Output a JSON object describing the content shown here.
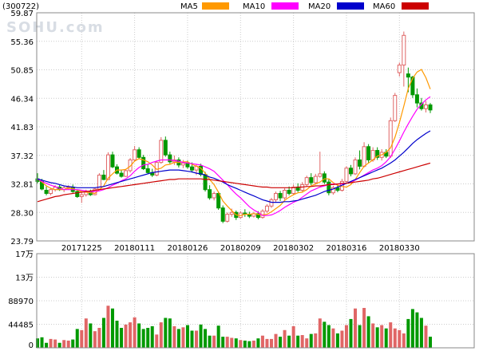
{
  "header": {
    "code": "(300722)",
    "watermark": "SOHU.com",
    "legend": [
      {
        "label": "MA5",
        "color": "#ff9900"
      },
      {
        "label": "MA10",
        "color": "#ff00ff"
      },
      {
        "label": "MA20",
        "color": "#0000cc"
      },
      {
        "label": "MA60",
        "color": "#cc0000"
      }
    ]
  },
  "colors": {
    "up": "#e06666",
    "down": "#009900",
    "grid": "#cccccc",
    "frame": "#888888"
  },
  "chart_data": {
    "type": "candlestick",
    "price_axis": {
      "ticks": [
        "59.87",
        "55.36",
        "50.85",
        "46.34",
        "41.83",
        "37.32",
        "32.81",
        "28.30",
        "23.79"
      ],
      "ylim": [
        23.79,
        59.87
      ]
    },
    "volume_axis": {
      "ticks": [
        "17万",
        "13万",
        "88970",
        "44485",
        "0"
      ],
      "ylim": [
        0,
        170000
      ]
    },
    "date_labels": [
      "20171225",
      "20180111",
      "20180126",
      "20180209",
      "20180302",
      "20180316",
      "20180330"
    ],
    "date_label_index": [
      10,
      22,
      34,
      46,
      58,
      70,
      82
    ],
    "candles": [
      {
        "o": 33.6,
        "h": 34.5,
        "l": 32.9,
        "c": 33.2
      },
      {
        "o": 33.2,
        "h": 33.6,
        "l": 31.8,
        "c": 32.0
      },
      {
        "o": 31.8,
        "h": 32.4,
        "l": 31.0,
        "c": 31.3
      },
      {
        "o": 31.3,
        "h": 32.2,
        "l": 31.0,
        "c": 31.9
      },
      {
        "o": 31.9,
        "h": 32.6,
        "l": 31.6,
        "c": 32.3
      },
      {
        "o": 32.3,
        "h": 32.7,
        "l": 31.7,
        "c": 31.9
      },
      {
        "o": 31.9,
        "h": 32.5,
        "l": 31.5,
        "c": 32.2
      },
      {
        "o": 32.2,
        "h": 32.6,
        "l": 31.9,
        "c": 32.3
      },
      {
        "o": 32.3,
        "h": 32.7,
        "l": 31.4,
        "c": 31.6
      },
      {
        "o": 31.6,
        "h": 31.8,
        "l": 30.6,
        "c": 30.8
      },
      {
        "o": 30.8,
        "h": 31.4,
        "l": 29.8,
        "c": 31.1
      },
      {
        "o": 31.1,
        "h": 31.9,
        "l": 30.8,
        "c": 31.5
      },
      {
        "o": 31.5,
        "h": 31.9,
        "l": 30.9,
        "c": 31.1
      },
      {
        "o": 31.1,
        "h": 32.2,
        "l": 31.0,
        "c": 32.0
      },
      {
        "o": 32.0,
        "h": 34.5,
        "l": 31.9,
        "c": 34.2
      },
      {
        "o": 34.2,
        "h": 35.0,
        "l": 33.4,
        "c": 33.5
      },
      {
        "o": 33.5,
        "h": 37.8,
        "l": 33.4,
        "c": 37.4
      },
      {
        "o": 37.4,
        "h": 37.9,
        "l": 35.3,
        "c": 35.5
      },
      {
        "o": 35.5,
        "h": 35.9,
        "l": 34.3,
        "c": 34.5
      },
      {
        "o": 34.5,
        "h": 35.0,
        "l": 33.8,
        "c": 34.0
      },
      {
        "o": 34.0,
        "h": 35.1,
        "l": 33.9,
        "c": 34.9
      },
      {
        "o": 34.9,
        "h": 36.9,
        "l": 34.6,
        "c": 36.6
      },
      {
        "o": 36.6,
        "h": 38.8,
        "l": 36.4,
        "c": 38.2
      },
      {
        "o": 38.2,
        "h": 38.6,
        "l": 36.8,
        "c": 37.0
      },
      {
        "o": 37.0,
        "h": 37.4,
        "l": 35.0,
        "c": 35.2
      },
      {
        "o": 35.2,
        "h": 35.9,
        "l": 34.4,
        "c": 34.6
      },
      {
        "o": 34.6,
        "h": 35.2,
        "l": 33.9,
        "c": 34.2
      },
      {
        "o": 34.2,
        "h": 36.5,
        "l": 34.0,
        "c": 36.2
      },
      {
        "o": 36.2,
        "h": 40.2,
        "l": 36.0,
        "c": 39.7
      },
      {
        "o": 39.7,
        "h": 40.3,
        "l": 37.1,
        "c": 37.4
      },
      {
        "o": 37.4,
        "h": 37.9,
        "l": 36.0,
        "c": 36.3
      },
      {
        "o": 36.3,
        "h": 37.3,
        "l": 35.8,
        "c": 36.6
      },
      {
        "o": 36.6,
        "h": 37.0,
        "l": 35.4,
        "c": 35.8
      },
      {
        "o": 35.8,
        "h": 36.6,
        "l": 35.3,
        "c": 36.1
      },
      {
        "o": 36.1,
        "h": 36.5,
        "l": 35.2,
        "c": 35.5
      },
      {
        "o": 35.5,
        "h": 36.2,
        "l": 34.6,
        "c": 35.0
      },
      {
        "o": 35.0,
        "h": 35.9,
        "l": 34.2,
        "c": 35.6
      },
      {
        "o": 35.6,
        "h": 36.0,
        "l": 34.0,
        "c": 34.3
      },
      {
        "o": 34.3,
        "h": 34.7,
        "l": 31.6,
        "c": 31.9
      },
      {
        "o": 31.9,
        "h": 32.6,
        "l": 30.3,
        "c": 30.6
      },
      {
        "o": 30.6,
        "h": 31.6,
        "l": 30.2,
        "c": 31.3
      },
      {
        "o": 31.3,
        "h": 31.6,
        "l": 28.7,
        "c": 29.0
      },
      {
        "o": 29.0,
        "h": 29.4,
        "l": 26.6,
        "c": 26.9
      },
      {
        "o": 26.9,
        "h": 28.3,
        "l": 26.7,
        "c": 28.0
      },
      {
        "o": 28.0,
        "h": 28.9,
        "l": 27.6,
        "c": 28.3
      },
      {
        "o": 28.3,
        "h": 28.6,
        "l": 27.1,
        "c": 27.5
      },
      {
        "o": 27.5,
        "h": 28.5,
        "l": 27.3,
        "c": 28.2
      },
      {
        "o": 28.2,
        "h": 28.8,
        "l": 27.6,
        "c": 28.0
      },
      {
        "o": 28.0,
        "h": 28.4,
        "l": 27.4,
        "c": 27.7
      },
      {
        "o": 27.7,
        "h": 28.4,
        "l": 27.5,
        "c": 28.1
      },
      {
        "o": 28.1,
        "h": 28.5,
        "l": 27.2,
        "c": 27.5
      },
      {
        "o": 27.5,
        "h": 28.8,
        "l": 27.3,
        "c": 28.5
      },
      {
        "o": 28.5,
        "h": 29.6,
        "l": 28.2,
        "c": 29.3
      },
      {
        "o": 29.3,
        "h": 30.6,
        "l": 29.0,
        "c": 30.3
      },
      {
        "o": 30.3,
        "h": 31.6,
        "l": 29.9,
        "c": 31.3
      },
      {
        "o": 31.3,
        "h": 31.7,
        "l": 30.1,
        "c": 30.6
      },
      {
        "o": 30.6,
        "h": 32.1,
        "l": 30.3,
        "c": 31.8
      },
      {
        "o": 31.8,
        "h": 32.4,
        "l": 31.0,
        "c": 31.3
      },
      {
        "o": 31.3,
        "h": 32.7,
        "l": 31.0,
        "c": 32.3
      },
      {
        "o": 32.3,
        "h": 32.9,
        "l": 31.5,
        "c": 31.8
      },
      {
        "o": 31.8,
        "h": 33.1,
        "l": 31.5,
        "c": 32.7
      },
      {
        "o": 32.7,
        "h": 34.1,
        "l": 32.4,
        "c": 33.8
      },
      {
        "o": 33.8,
        "h": 34.5,
        "l": 32.6,
        "c": 33.0
      },
      {
        "o": 33.0,
        "h": 34.4,
        "l": 32.7,
        "c": 34.0
      },
      {
        "o": 34.0,
        "h": 37.9,
        "l": 33.8,
        "c": 34.4
      },
      {
        "o": 34.4,
        "h": 34.8,
        "l": 32.8,
        "c": 33.1
      },
      {
        "o": 33.1,
        "h": 33.5,
        "l": 31.0,
        "c": 31.4
      },
      {
        "o": 31.4,
        "h": 32.5,
        "l": 31.1,
        "c": 32.2
      },
      {
        "o": 32.2,
        "h": 32.6,
        "l": 31.5,
        "c": 31.8
      },
      {
        "o": 31.8,
        "h": 33.6,
        "l": 31.6,
        "c": 33.2
      },
      {
        "o": 33.2,
        "h": 35.6,
        "l": 33.0,
        "c": 35.3
      },
      {
        "o": 35.3,
        "h": 35.8,
        "l": 34.0,
        "c": 34.4
      },
      {
        "o": 34.4,
        "h": 37.0,
        "l": 34.2,
        "c": 36.6
      },
      {
        "o": 36.6,
        "h": 38.1,
        "l": 35.1,
        "c": 35.6
      },
      {
        "o": 35.6,
        "h": 39.4,
        "l": 35.4,
        "c": 38.7
      },
      {
        "o": 38.7,
        "h": 39.1,
        "l": 36.1,
        "c": 36.6
      },
      {
        "o": 36.6,
        "h": 38.6,
        "l": 36.3,
        "c": 38.1
      },
      {
        "o": 38.1,
        "h": 38.6,
        "l": 36.6,
        "c": 37.0
      },
      {
        "o": 37.0,
        "h": 38.3,
        "l": 36.5,
        "c": 37.8
      },
      {
        "o": 37.8,
        "h": 38.3,
        "l": 36.9,
        "c": 37.2
      },
      {
        "o": 37.2,
        "h": 43.3,
        "l": 36.9,
        "c": 42.8
      },
      {
        "o": 42.8,
        "h": 47.2,
        "l": 42.6,
        "c": 46.8
      },
      {
        "o": 50.4,
        "h": 52.0,
        "l": 49.8,
        "c": 51.6
      },
      {
        "o": 51.6,
        "h": 56.9,
        "l": 48.2,
        "c": 56.3
      },
      {
        "o": 50.2,
        "h": 51.2,
        "l": 47.3,
        "c": 49.7
      },
      {
        "o": 49.7,
        "h": 49.9,
        "l": 46.4,
        "c": 46.9
      },
      {
        "o": 46.9,
        "h": 47.9,
        "l": 44.9,
        "c": 45.6
      },
      {
        "o": 45.6,
        "h": 46.4,
        "l": 44.4,
        "c": 44.7
      },
      {
        "o": 44.7,
        "h": 45.9,
        "l": 44.1,
        "c": 45.3
      },
      {
        "o": 45.3,
        "h": 45.6,
        "l": 44.0,
        "c": 44.5
      }
    ],
    "volumes": [
      17000,
      19000,
      9000,
      16000,
      15000,
      9000,
      14000,
      13000,
      15000,
      34000,
      32000,
      53000,
      44000,
      30000,
      36000,
      54000,
      76000,
      71000,
      49000,
      36000,
      42000,
      46000,
      55000,
      44000,
      34000,
      36000,
      39000,
      24000,
      46000,
      54000,
      53000,
      39000,
      34000,
      37000,
      41000,
      31000,
      31000,
      42000,
      34000,
      22000,
      22000,
      40000,
      20000,
      20000,
      18000,
      17000,
      14000,
      13000,
      12000,
      13000,
      17000,
      22000,
      16000,
      16000,
      25000,
      20000,
      32000,
      22000,
      39000,
      22000,
      23000,
      17000,
      25000,
      26000,
      53000,
      47000,
      41000,
      35000,
      26000,
      31000,
      41000,
      52000,
      71000,
      41000,
      72000,
      57000,
      44000,
      37000,
      41000,
      35000,
      46000,
      35000,
      32000,
      26000,
      52000,
      70000,
      64000,
      54000,
      40000,
      20000
    ],
    "ma5": [
      33.6,
      33.1,
      32.5,
      32.1,
      31.9,
      31.9,
      31.9,
      32.1,
      32.1,
      31.8,
      31.6,
      31.5,
      31.4,
      31.3,
      31.9,
      32.5,
      33.7,
      34.4,
      35.0,
      35.0,
      35.1,
      35.6,
      36.4,
      36.8,
      36.6,
      36.3,
      35.8,
      35.1,
      35.3,
      35.8,
      35.9,
      36.2,
      36.2,
      36.3,
      36.3,
      35.9,
      35.6,
      35.3,
      34.5,
      33.5,
      32.7,
      31.5,
      30.1,
      29.3,
      28.6,
      27.9,
      27.8,
      28.0,
      28.0,
      28.1,
      28.0,
      27.9,
      28.0,
      28.4,
      28.9,
      29.4,
      30.2,
      30.7,
      31.1,
      31.4,
      31.5,
      31.9,
      32.5,
      32.8,
      33.1,
      33.6,
      33.6,
      33.0,
      32.6,
      32.4,
      32.3,
      32.7,
      33.5,
      34.6,
      35.6,
      36.1,
      36.6,
      37.2,
      37.4,
      37.8,
      38.5,
      40.2,
      42.5,
      45.1,
      47.9,
      49.5,
      50.5,
      50.9,
      49.6,
      47.8
    ],
    "ma10": [
      33.6,
      33.2,
      32.9,
      32.6,
      32.4,
      32.1,
      31.9,
      31.9,
      31.9,
      31.9,
      31.8,
      31.7,
      31.6,
      31.6,
      31.7,
      31.9,
      32.2,
      32.6,
      32.9,
      33.3,
      33.6,
      34.1,
      34.8,
      35.4,
      35.8,
      35.9,
      36.2,
      36.4,
      36.6,
      36.6,
      36.6,
      36.5,
      36.4,
      36.2,
      36.1,
      36.0,
      35.9,
      35.8,
      35.5,
      35.2,
      34.8,
      34.1,
      33.4,
      32.7,
      31.9,
      31.2,
      30.6,
      29.9,
      29.2,
      28.7,
      28.3,
      27.8,
      27.8,
      27.9,
      28.2,
      28.6,
      29.1,
      29.5,
      29.9,
      30.2,
      30.7,
      31.2,
      31.7,
      32.0,
      32.3,
      32.5,
      32.7,
      32.8,
      32.8,
      32.8,
      32.9,
      33.1,
      33.4,
      33.8,
      34.2,
      34.6,
      35.0,
      35.3,
      35.7,
      36.3,
      37.1,
      38.3,
      39.6,
      41.0,
      42.3,
      43.5,
      44.6,
      45.4,
      46.1,
      46.6
    ],
    "ma20": [
      33.6,
      33.4,
      33.2,
      33.0,
      32.9,
      32.7,
      32.5,
      32.4,
      32.3,
      32.2,
      32.2,
      32.2,
      32.2,
      32.2,
      32.3,
      32.4,
      32.6,
      32.8,
      33.0,
      33.2,
      33.4,
      33.6,
      33.8,
      34.0,
      34.2,
      34.4,
      34.6,
      34.7,
      34.8,
      34.9,
      35.0,
      35.0,
      35.0,
      34.9,
      34.8,
      34.7,
      34.5,
      34.4,
      34.2,
      33.9,
      33.7,
      33.4,
      33.1,
      32.7,
      32.4,
      32.1,
      31.8,
      31.5,
      31.2,
      30.9,
      30.6,
      30.3,
      30.1,
      29.9,
      29.9,
      29.9,
      30.0,
      30.0,
      30.1,
      30.2,
      30.4,
      30.6,
      30.8,
      31.0,
      31.3,
      31.6,
      31.8,
      32.0,
      32.3,
      32.6,
      32.9,
      33.2,
      33.5,
      33.8,
      34.1,
      34.4,
      34.7,
      35.0,
      35.3,
      35.7,
      36.1,
      36.6,
      37.2,
      37.8,
      38.5,
      39.2,
      39.8,
      40.3,
      40.8,
      41.2
    ],
    "ma60": [
      30.0,
      30.2,
      30.4,
      30.6,
      30.8,
      30.9,
      31.1,
      31.2,
      31.3,
      31.4,
      31.5,
      31.6,
      31.7,
      31.8,
      31.9,
      32.0,
      32.1,
      32.2,
      32.3,
      32.4,
      32.5,
      32.6,
      32.7,
      32.8,
      32.9,
      33.0,
      33.1,
      33.2,
      33.3,
      33.4,
      33.5,
      33.5,
      33.6,
      33.6,
      33.6,
      33.6,
      33.6,
      33.6,
      33.5,
      33.5,
      33.4,
      33.3,
      33.2,
      33.1,
      33.0,
      32.9,
      32.8,
      32.7,
      32.6,
      32.5,
      32.4,
      32.3,
      32.3,
      32.2,
      32.2,
      32.2,
      32.2,
      32.2,
      32.2,
      32.3,
      32.3,
      32.4,
      32.4,
      32.5,
      32.5,
      32.6,
      32.7,
      32.7,
      32.8,
      32.9,
      32.9,
      33.0,
      33.1,
      33.2,
      33.3,
      33.4,
      33.6,
      33.7,
      33.9,
      34.1,
      34.3,
      34.5,
      34.7,
      34.9,
      35.1,
      35.3,
      35.5,
      35.7,
      35.9,
      36.1
    ]
  }
}
